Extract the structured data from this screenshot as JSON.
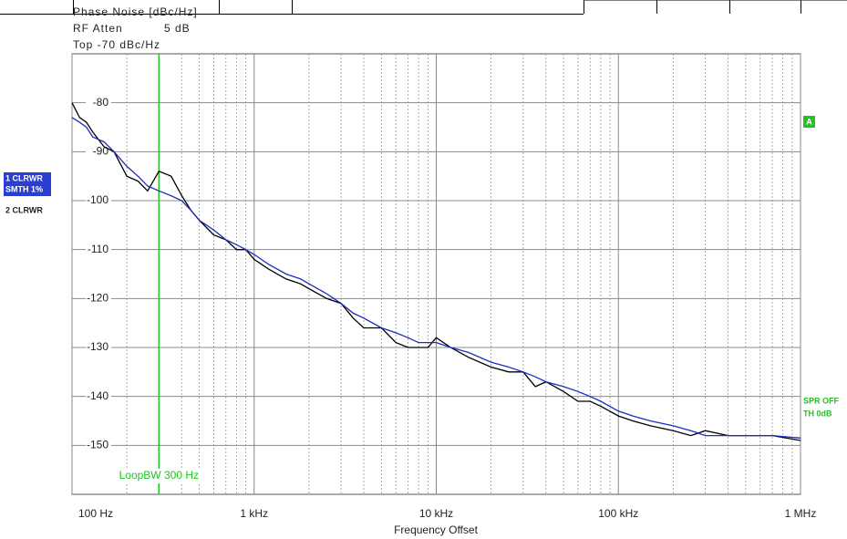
{
  "header": {
    "measurement": "Phase Noise [dBc/Hz]",
    "rf_atten_label": "RF Atten",
    "rf_atten_value": "5 dB",
    "top": "Top -70 dBc/Hz"
  },
  "side_labels": {
    "trace1": "1 CLRWR",
    "trace1_detail": "SMTH 1%",
    "trace2": "2 CLRWR",
    "marker_a": "A",
    "spur": "SPR OFF",
    "threshold": "TH 0dB"
  },
  "chart_data": {
    "type": "line",
    "xlabel": "Frequency Offset",
    "xscale": "log",
    "grid": true,
    "minor_grid": true,
    "xlim": [
      100,
      1000000
    ],
    "ylim": [
      -160,
      -70
    ],
    "xticks": [
      {
        "value": 100,
        "label": "100 Hz"
      },
      {
        "value": 1000,
        "label": "1 kHz"
      },
      {
        "value": 10000,
        "label": "10 kHz"
      },
      {
        "value": 100000,
        "label": "100 kHz"
      },
      {
        "value": 1000000,
        "label": "1 MHz"
      }
    ],
    "yticks": [
      -80,
      -90,
      -100,
      -110,
      -120,
      -130,
      -140,
      -150
    ],
    "annotations": [
      {
        "text": "LoopBW 300 Hz",
        "x": 300,
        "color": "#22c322"
      }
    ],
    "x": [
      100,
      110,
      120,
      130,
      150,
      170,
      200,
      230,
      260,
      300,
      350,
      400,
      450,
      500,
      600,
      700,
      800,
      900,
      1000,
      1200,
      1500,
      1800,
      2000,
      2500,
      3000,
      3500,
      4000,
      5000,
      6000,
      7000,
      8000,
      9000,
      10000,
      12000,
      15000,
      20000,
      25000,
      30000,
      35000,
      40000,
      50000,
      60000,
      70000,
      80000,
      100000,
      120000,
      150000,
      200000,
      250000,
      300000,
      400000,
      500000,
      700000,
      1000000
    ],
    "series": [
      {
        "name": "2 CLRWR",
        "color": "#000000",
        "values": [
          -80,
          -83,
          -84,
          -86,
          -89,
          -90,
          -95,
          -96,
          -98,
          -94,
          -95,
          -99,
          -102,
          -104,
          -107,
          -108,
          -110,
          -110,
          -112,
          -114,
          -116,
          -117,
          -118,
          -120,
          -121,
          -124,
          -126,
          -126,
          -129,
          -130,
          -130,
          -130,
          -128,
          -130,
          -132,
          -134,
          -135,
          -135,
          -138,
          -137,
          -139,
          -141,
          -141,
          -142,
          -144,
          -145,
          -146,
          -147,
          -148,
          -147,
          -148,
          -148,
          -148,
          -149
        ]
      },
      {
        "name": "1 CLRWR",
        "color": "#1a2fbf",
        "values": [
          -83,
          -84,
          -85,
          -87,
          -88,
          -90,
          -93,
          -95,
          -97,
          -98,
          -99,
          -100,
          -102,
          -104,
          -106,
          -108,
          -109,
          -110,
          -111,
          -113,
          -115,
          -116,
          -117,
          -119,
          -121,
          -123,
          -124,
          -126,
          -127,
          -128,
          -129,
          -129,
          -129,
          -130,
          -131,
          -133,
          -134,
          -135,
          -136,
          -137,
          -138,
          -139,
          -140,
          -141,
          -143,
          -144,
          -145,
          -146,
          -147,
          -148,
          -148,
          -148,
          -148,
          -148.5
        ]
      }
    ]
  }
}
